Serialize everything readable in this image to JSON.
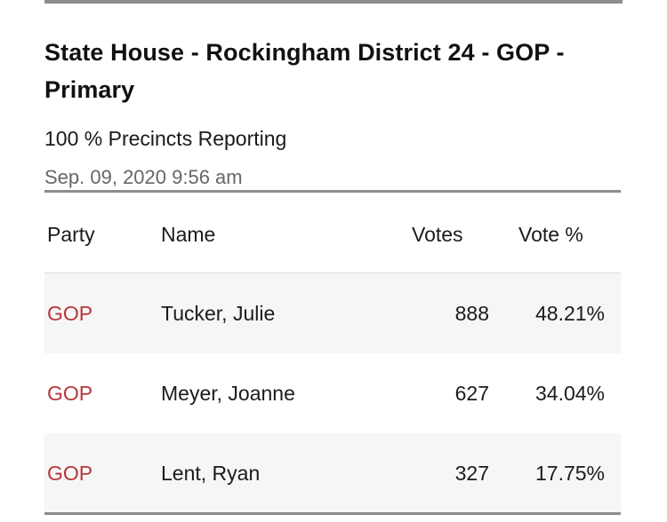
{
  "race": {
    "title": "State House - Rockingham District 24 - GOP - Primary",
    "reporting": "100 % Precincts Reporting",
    "updated": "Sep. 09, 2020 9:56 am"
  },
  "table": {
    "columns": [
      "Party",
      "Name",
      "Votes",
      "Vote %"
    ],
    "rows": [
      {
        "party": "GOP",
        "name": "Tucker, Julie",
        "votes": "888",
        "pct": "48.21%"
      },
      {
        "party": "GOP",
        "name": "Meyer, Joanne",
        "votes": "627",
        "pct": "34.04%"
      },
      {
        "party": "GOP",
        "name": "Lent, Ryan",
        "votes": "327",
        "pct": "17.75%"
      }
    ]
  },
  "colors": {
    "party_gop": "#b8363b",
    "rule": "#8c8c8c",
    "row_shade": "#f6f6f6"
  }
}
